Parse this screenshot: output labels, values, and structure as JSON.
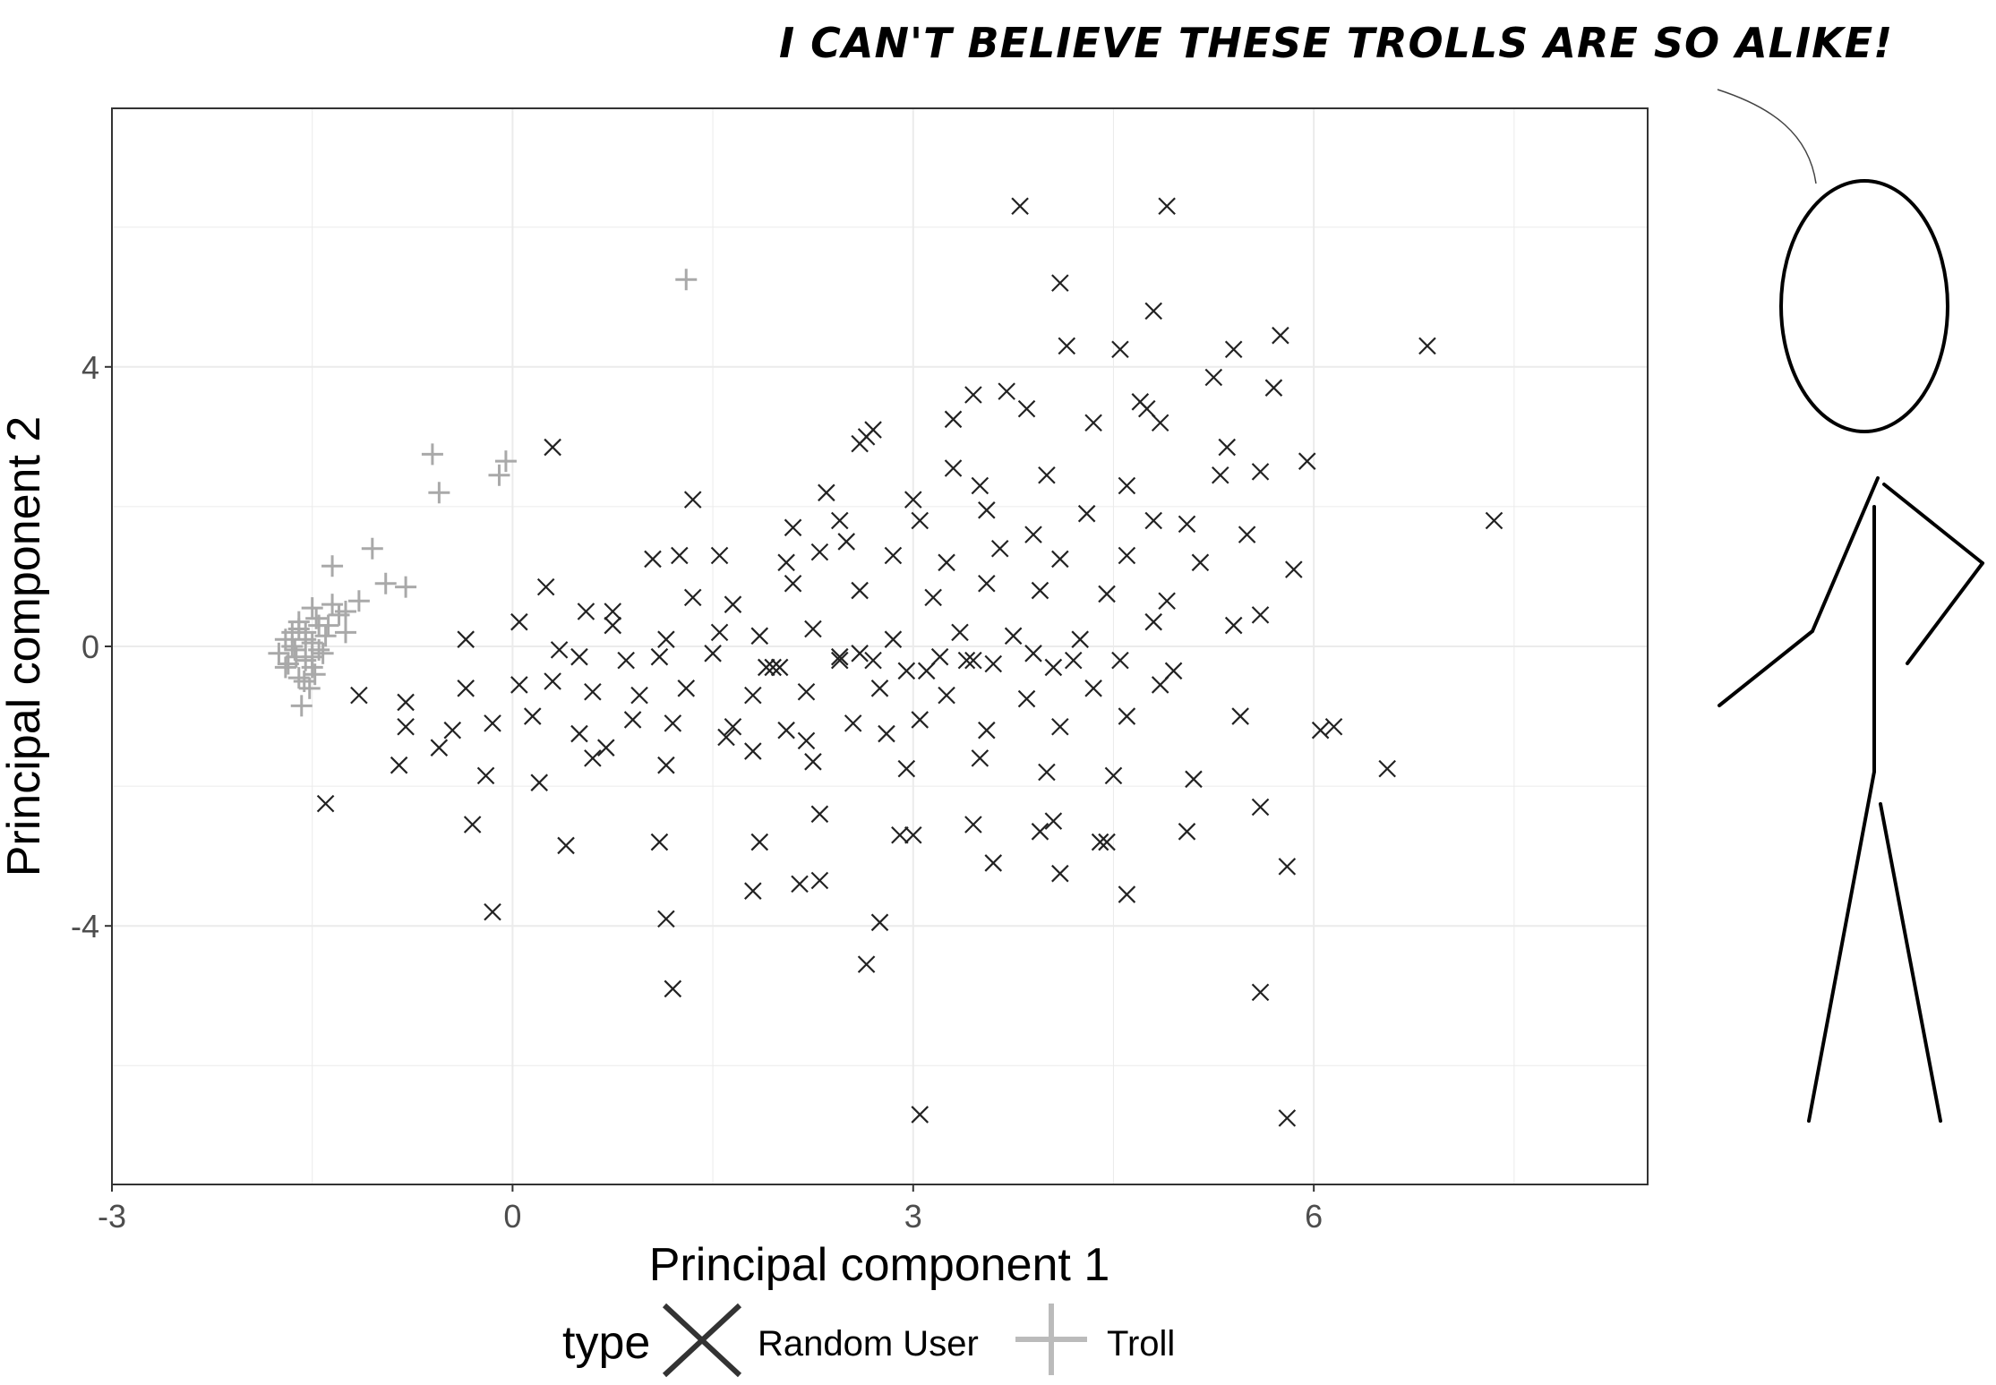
{
  "speech": "I CAN'T BELIEVE THESE TROLLS ARE SO ALIKE!",
  "chart_data": {
    "type": "scatter",
    "xlabel": "Principal component 1",
    "ylabel": "Principal component 2",
    "xlim": [
      -3,
      8.5
    ],
    "ylim": [
      -7.7,
      7.7
    ],
    "xticks": [
      -3,
      0,
      3,
      6
    ],
    "yticks": [
      4,
      0,
      -4
    ],
    "grid": true,
    "legend": {
      "title": "type",
      "position": "bottom",
      "entries": [
        "Random User",
        "Troll"
      ]
    },
    "colors": {
      "Random User": "#222222",
      "Troll": "#a9a9a9"
    },
    "series": [
      {
        "name": "Random User",
        "marker": "x",
        "x": [
          3.8,
          4.9,
          4.1,
          4.8,
          4.15,
          5.75,
          6.85,
          4.55,
          5.4,
          5.25,
          5.7,
          3.45,
          3.7,
          3.85,
          4.7,
          4.75,
          3.3,
          4.35,
          4.85,
          0.3,
          2.65,
          2.7,
          2.6,
          2.35,
          2.45,
          3.0,
          3.5,
          3.3,
          5.35,
          5.6,
          5.95,
          7.35,
          5.3,
          4.0,
          4.6,
          5.05,
          1.35,
          2.1,
          2.5,
          3.05,
          3.55,
          3.9,
          4.3,
          4.8,
          1.05,
          1.25,
          1.55,
          2.05,
          2.3,
          2.85,
          3.25,
          3.65,
          4.1,
          4.6,
          5.15,
          5.5,
          5.85,
          0.25,
          0.55,
          0.75,
          1.35,
          1.65,
          2.1,
          2.6,
          3.15,
          3.55,
          3.95,
          4.45,
          4.9,
          5.6,
          0.05,
          0.75,
          1.15,
          1.55,
          1.85,
          2.25,
          2.85,
          3.35,
          3.75,
          4.25,
          4.8,
          5.4,
          -0.35,
          0.35,
          0.5,
          0.85,
          1.1,
          1.5,
          1.95,
          2.45,
          2.95,
          3.45,
          4.05,
          4.55,
          4.95,
          -1.15,
          -0.8,
          -0.35,
          0.05,
          0.3,
          0.6,
          0.95,
          1.3,
          1.8,
          2.2,
          2.75,
          3.25,
          3.85,
          4.35,
          4.85,
          -0.8,
          -0.45,
          -0.15,
          0.15,
          0.5,
          0.9,
          1.2,
          1.65,
          2.05,
          2.55,
          3.05,
          3.55,
          4.1,
          4.6,
          5.45,
          6.05,
          6.15,
          -0.85,
          -0.55,
          -0.2,
          0.2,
          0.6,
          1.15,
          1.8,
          2.25,
          2.95,
          3.5,
          4.0,
          4.5,
          5.1,
          6.55,
          -1.4,
          -0.3,
          0.4,
          1.1,
          1.85,
          2.3,
          2.9,
          3.45,
          4.05,
          4.45,
          5.05,
          5.6,
          -0.15,
          1.15,
          1.8,
          2.15,
          2.75,
          3.6,
          4.1,
          4.6,
          5.8,
          1.2,
          2.3,
          2.65,
          3.0,
          3.95,
          4.4,
          5.6,
          3.05,
          5.8,
          2.2,
          2.8,
          2.45,
          3.4,
          3.9,
          1.6,
          2.0,
          2.6,
          3.1,
          3.6,
          4.2,
          0.7,
          1.9,
          2.7,
          3.2
        ],
        "y": [
          6.3,
          6.3,
          5.2,
          4.8,
          4.3,
          4.45,
          4.3,
          4.25,
          4.25,
          3.85,
          3.7,
          3.6,
          3.65,
          3.4,
          3.5,
          3.4,
          3.25,
          3.2,
          3.2,
          2.85,
          3.0,
          3.1,
          2.9,
          2.2,
          1.8,
          2.1,
          2.3,
          2.55,
          2.85,
          2.5,
          2.65,
          1.8,
          2.45,
          2.45,
          2.3,
          1.75,
          2.1,
          1.7,
          1.5,
          1.8,
          1.95,
          1.6,
          1.9,
          1.8,
          1.25,
          1.3,
          1.3,
          1.2,
          1.35,
          1.3,
          1.2,
          1.4,
          1.25,
          1.3,
          1.2,
          1.6,
          1.1,
          0.85,
          0.5,
          0.5,
          0.7,
          0.6,
          0.9,
          0.8,
          0.7,
          0.9,
          0.8,
          0.75,
          0.65,
          0.45,
          0.35,
          0.3,
          0.1,
          0.2,
          0.15,
          0.25,
          0.1,
          0.2,
          0.15,
          0.1,
          0.35,
          0.3,
          0.1,
          -0.05,
          -0.15,
          -0.2,
          -0.15,
          -0.1,
          -0.3,
          -0.2,
          -0.35,
          -0.2,
          -0.3,
          -0.2,
          -0.35,
          -0.7,
          -0.8,
          -0.6,
          -0.55,
          -0.5,
          -0.65,
          -0.7,
          -0.6,
          -0.7,
          -0.65,
          -0.6,
          -0.7,
          -0.75,
          -0.6,
          -0.55,
          -1.15,
          -1.2,
          -1.1,
          -1.0,
          -1.25,
          -1.05,
          -1.1,
          -1.15,
          -1.2,
          -1.1,
          -1.05,
          -1.2,
          -1.15,
          -1.0,
          -1.0,
          -1.2,
          -1.15,
          -1.7,
          -1.45,
          -1.85,
          -1.95,
          -1.6,
          -1.7,
          -1.5,
          -1.65,
          -1.75,
          -1.6,
          -1.8,
          -1.85,
          -1.9,
          -1.75,
          -2.25,
          -2.55,
          -2.85,
          -2.8,
          -2.8,
          -2.4,
          -2.7,
          -2.55,
          -2.5,
          -2.8,
          -2.65,
          -2.3,
          -3.8,
          -3.9,
          -3.5,
          -3.4,
          -3.95,
          -3.1,
          -3.25,
          -3.55,
          -3.15,
          -4.9,
          -3.35,
          -4.55,
          -2.7,
          -2.65,
          -2.8,
          -4.95,
          -6.7,
          -6.75,
          -1.35,
          -1.25,
          -0.15,
          -0.2,
          -0.1,
          -1.3,
          -0.3,
          -0.1,
          -0.35,
          -0.25,
          -0.2,
          -1.45,
          -0.3,
          -0.2,
          -0.15
        ]
      },
      {
        "name": "Troll",
        "marker": "+",
        "x": [
          1.3,
          -0.6,
          -0.05,
          -0.55,
          -0.1,
          -1.35,
          -1.05,
          -0.8,
          -0.95,
          -1.15,
          -1.25,
          -1.35,
          -1.45,
          -1.5,
          -1.55,
          -1.6,
          -1.7,
          -1.75,
          -1.65,
          -1.55,
          -1.5,
          -1.45,
          -1.4,
          -1.5,
          -1.6,
          -1.68,
          -1.52,
          -1.58,
          -1.62,
          -1.48,
          -1.42,
          -1.55,
          -1.65,
          -1.7,
          -1.5,
          -1.6,
          -1.56,
          -1.63,
          -1.47,
          -1.38,
          -1.3,
          -1.25
        ],
        "y": [
          5.25,
          2.75,
          2.65,
          2.2,
          2.45,
          1.15,
          1.4,
          0.85,
          0.9,
          0.65,
          0.5,
          0.6,
          0.3,
          0.55,
          0.2,
          0.35,
          0.1,
          -0.1,
          0.0,
          -0.2,
          -0.3,
          -0.05,
          0.15,
          0.05,
          -0.45,
          -0.25,
          -0.6,
          -0.85,
          -0.15,
          -0.4,
          -0.1,
          0.1,
          0.2,
          -0.3,
          -0.15,
          0.25,
          -0.5,
          -0.05,
          0.4,
          0.3,
          0.45,
          0.2
        ]
      }
    ]
  }
}
